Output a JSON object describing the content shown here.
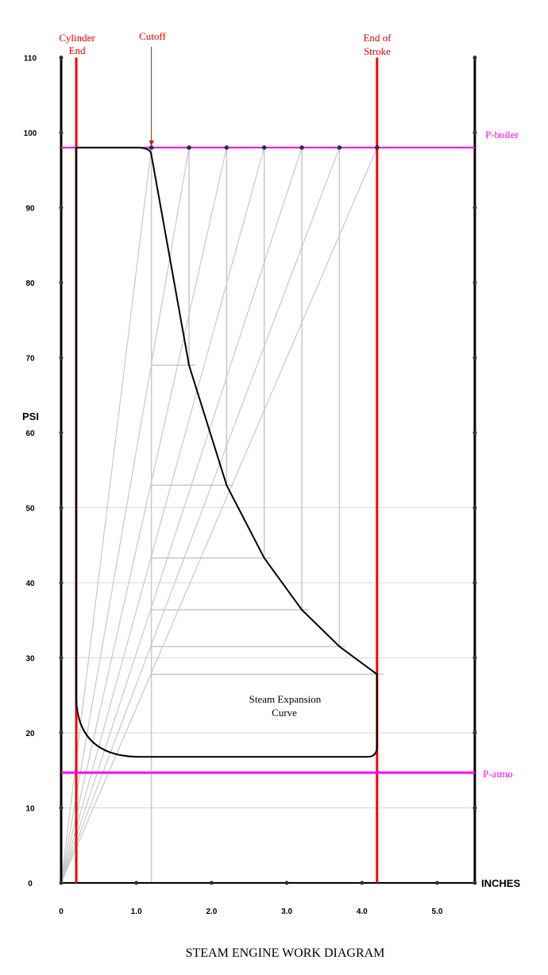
{
  "chart_data": {
    "type": "line",
    "caption": "STEAM ENGINE WORK DIAGRAM",
    "ylabel": "PSI",
    "xlabel": "INCHES",
    "y_ticks": [
      "0",
      "10",
      "20",
      "30",
      "40",
      "50",
      "60",
      "70",
      "80",
      "90",
      "100",
      "110"
    ],
    "x_ticks": [
      "0",
      "1.0",
      "2.0",
      "3.0",
      "4.0",
      "5.0"
    ],
    "labels": {
      "cylinder_end_1": "Cylinder",
      "cylinder_end_2": "End",
      "cutoff": "Cutoff",
      "end_of_stroke_1": "End  of",
      "end_of_stroke_2": "Stroke",
      "p_boiler": "P-boiler",
      "p_atmo": "P-atmo",
      "expansion_1": "Steam Expansion",
      "expansion_2": "Curve"
    },
    "xlim": [
      0,
      5.5
    ],
    "ylim": [
      0,
      110
    ],
    "p_boiler": 98,
    "p_atmo": 14.7,
    "cylinder_end_x": 0.2,
    "cutoff_x": 1.2,
    "end_of_stroke_x": 4.2,
    "construction_x": [
      1.2,
      1.7,
      2.2,
      2.7,
      3.2,
      3.7,
      4.2
    ],
    "expansion_points": [
      {
        "x": 1.2,
        "y": 97
      },
      {
        "x": 1.7,
        "y": 69
      },
      {
        "x": 2.2,
        "y": 53
      },
      {
        "x": 2.7,
        "y": 43.3
      },
      {
        "x": 3.2,
        "y": 36.4
      },
      {
        "x": 3.7,
        "y": 31.5
      },
      {
        "x": 4.2,
        "y": 27.8
      }
    ],
    "return_pressure": 16.8,
    "grid": true,
    "colors": {
      "axis": "#000000",
      "stroke_limits": "#ff0000",
      "pressure_lines": "#ff00ff",
      "construction": "#c8c8c8",
      "grid": "#d8d8d8",
      "curve": "#000000"
    }
  }
}
